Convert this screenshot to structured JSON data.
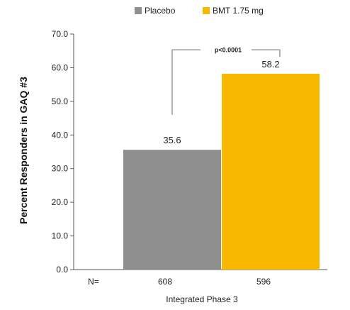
{
  "chart_data": {
    "type": "bar",
    "title": "",
    "xlabel": "Integrated Phase 3",
    "ylabel": "Percent Responders in GAQ #3",
    "ylim": [
      0,
      70
    ],
    "yticks": [
      "0.0",
      "10.0",
      "20.0",
      "30.0",
      "40.0",
      "50.0",
      "60.0",
      "70.0"
    ],
    "grid": false,
    "legend_position": "top",
    "series": [
      {
        "name": "Placebo",
        "value": 35.6,
        "label": "35.6",
        "n": "608",
        "color": "#8f8f8f"
      },
      {
        "name": "BMT 1.75 mg",
        "value": 58.2,
        "label": "58.2",
        "n": "596",
        "color": "#f9b800"
      }
    ],
    "n_prefix": "N=",
    "annotation": "p<0.0001"
  }
}
